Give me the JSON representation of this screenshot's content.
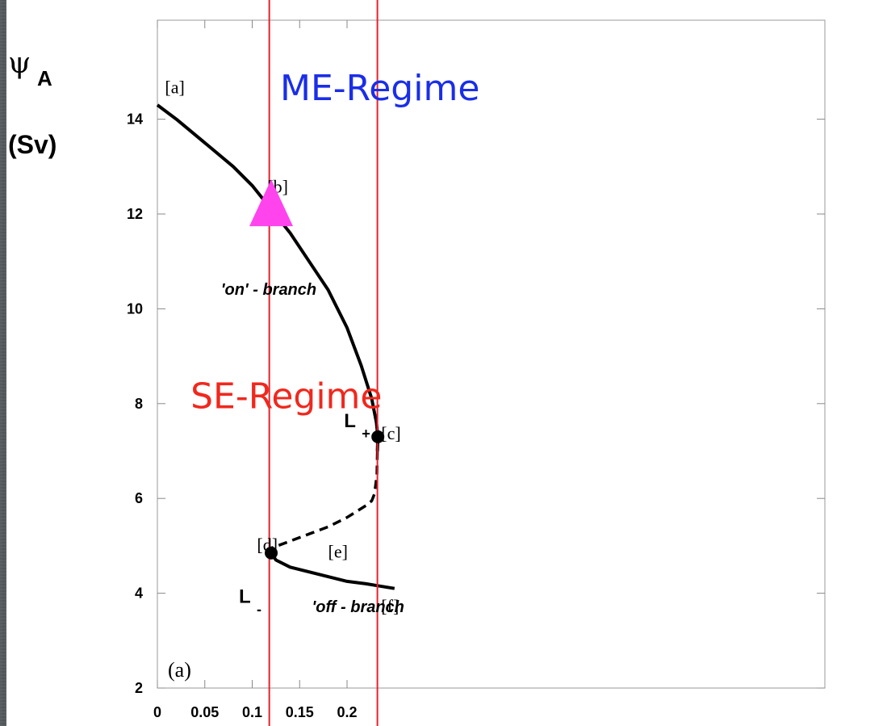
{
  "chart_data": {
    "type": "line",
    "title": "",
    "panel_label": "(a)",
    "ylabel_symbol": "ψ",
    "ylabel_subscript": "A",
    "ylabel_unit": "(Sv)",
    "xlabel": "",
    "xlim": [
      0,
      0.25
    ],
    "ylim": [
      2,
      16
    ],
    "x_ticks": [
      "0",
      "0.05",
      "0.1",
      "0.15",
      "0.2"
    ],
    "x_tick_values": [
      0,
      0.05,
      0.1,
      0.15,
      0.2
    ],
    "y_ticks": [
      "2",
      "4",
      "6",
      "8",
      "10",
      "12",
      "14"
    ],
    "y_tick_values": [
      2,
      4,
      6,
      8,
      10,
      12,
      14
    ],
    "grid": false,
    "series": [
      {
        "style": "solid",
        "x": [
          0,
          0.02,
          0.05,
          0.08,
          0.1,
          0.12,
          0.14,
          0.16,
          0.18,
          0.2,
          0.215,
          0.226,
          0.231,
          0.2325,
          0.232
        ],
        "y": [
          14.3,
          14.0,
          13.5,
          13.0,
          12.6,
          12.1,
          11.6,
          11.0,
          10.4,
          9.6,
          8.8,
          8.1,
          7.6,
          7.3,
          7.0
        ]
      },
      {
        "style": "dashed",
        "x": [
          0.232,
          0.2315,
          0.229,
          0.226,
          0.22,
          0.2,
          0.18,
          0.16,
          0.14,
          0.12
        ],
        "y": [
          7.0,
          6.5,
          6.1,
          5.95,
          5.85,
          5.6,
          5.4,
          5.25,
          5.1,
          4.95
        ]
      },
      {
        "style": "solid",
        "x": [
          0.12,
          0.125,
          0.14,
          0.16,
          0.18,
          0.2,
          0.22,
          0.235,
          0.25
        ],
        "y": [
          4.85,
          4.7,
          4.55,
          4.45,
          4.35,
          4.25,
          4.2,
          4.15,
          4.1
        ]
      }
    ],
    "bifurcation_points": [
      {
        "x": 0.2325,
        "y": 7.3,
        "label": "L",
        "sub": "+"
      },
      {
        "x": 0.12,
        "y": 4.85,
        "label": "L",
        "sub": "-"
      }
    ],
    "point_labels": [
      {
        "text": "[a]",
        "x": 0.008,
        "y": 14.55
      },
      {
        "text": "[b]",
        "x": 0.116,
        "y": 12.45
      },
      {
        "text": "[c]",
        "x": 0.236,
        "y": 7.25
      },
      {
        "text": "[d]",
        "x": 0.105,
        "y": 4.9
      },
      {
        "text": "[e]",
        "x": 0.18,
        "y": 4.75
      },
      {
        "text": "[f]",
        "x": 0.236,
        "y": 3.6
      }
    ],
    "branch_labels": [
      {
        "text": "'on' - branch",
        "x": 0.067,
        "y": 10.3
      },
      {
        "text": "'off - branch",
        "x": 0.163,
        "y": 3.6
      }
    ],
    "marker": {
      "shape": "triangle",
      "color": "#ff44ee",
      "x": 0.12,
      "y": 12.05
    },
    "vertical_lines": [
      {
        "x": 0.118,
        "color": "#e8202a"
      },
      {
        "x": 0.232,
        "color": "#e8202a"
      }
    ],
    "annotations": [
      {
        "text": "ME-Regime",
        "color": "#1a2ee8",
        "x": 0.12,
        "y": 14.4
      },
      {
        "text": "SE-Regime",
        "color": "#f0281e",
        "x": 0.035,
        "y": 7.9
      }
    ]
  }
}
